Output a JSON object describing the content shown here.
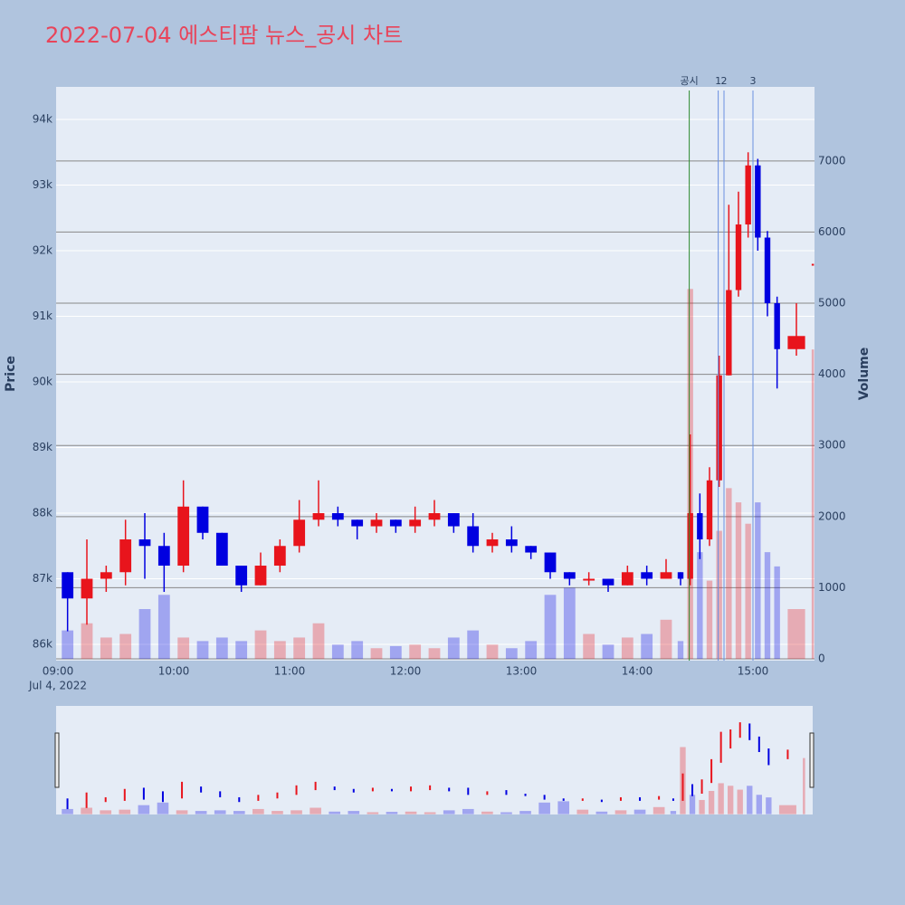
{
  "chart_data": {
    "type": "candlestick",
    "title": "2022-07-04 에스티팜 뉴스_공시 차트",
    "ylabel": "Price",
    "y2label": "Volume",
    "x_sublabel": "Jul 4, 2022",
    "x": [
      "09:00",
      "09:10",
      "09:20",
      "09:30",
      "09:40",
      "09:50",
      "10:00",
      "10:10",
      "10:20",
      "10:30",
      "10:40",
      "10:50",
      "11:00",
      "11:10",
      "11:20",
      "11:30",
      "11:40",
      "11:50",
      "12:00",
      "12:10",
      "12:20",
      "12:30",
      "12:40",
      "12:50",
      "13:00",
      "13:10",
      "13:20",
      "13:30",
      "13:40",
      "13:50",
      "14:00",
      "14:10",
      "14:20",
      "14:25",
      "14:30",
      "14:35",
      "14:40",
      "14:45",
      "14:50",
      "14:55",
      "15:00",
      "15:05",
      "15:10",
      "15:15",
      "15:30"
    ],
    "open": [
      87100,
      86700,
      87000,
      87100,
      87600,
      87500,
      87200,
      88100,
      87700,
      87200,
      86900,
      87200,
      87500,
      87900,
      88000,
      87900,
      87800,
      87900,
      87800,
      87900,
      88000,
      87800,
      87500,
      87600,
      87500,
      87400,
      87100,
      87000,
      87000,
      86900,
      87100,
      87000,
      87100,
      87000,
      88000,
      87600,
      88500,
      90100,
      91400,
      92400,
      93300,
      92200,
      91200,
      90500,
      91800
    ],
    "high": [
      87100,
      87600,
      87200,
      87900,
      88000,
      87700,
      88500,
      88100,
      87700,
      87200,
      87400,
      87600,
      88200,
      88500,
      88100,
      87900,
      88000,
      87900,
      88100,
      88200,
      88000,
      88000,
      87700,
      87800,
      87500,
      87400,
      87100,
      87100,
      87000,
      87200,
      87200,
      87300,
      87100,
      89200,
      88300,
      88700,
      90400,
      92700,
      92900,
      93500,
      93400,
      92300,
      91300,
      91200,
      91800
    ],
    "low": [
      86200,
      86300,
      86800,
      86900,
      87000,
      86800,
      87100,
      87600,
      87200,
      86800,
      86900,
      87100,
      87400,
      87800,
      87800,
      87600,
      87700,
      87700,
      87700,
      87800,
      87700,
      87400,
      87400,
      87400,
      87300,
      87000,
      86900,
      86900,
      86800,
      86900,
      86900,
      87000,
      86900,
      86900,
      87300,
      87500,
      88400,
      90100,
      91300,
      92200,
      92000,
      91000,
      89900,
      90400,
      91800
    ],
    "close": [
      86700,
      87000,
      87100,
      87600,
      87500,
      87200,
      88100,
      87700,
      87200,
      86900,
      87200,
      87500,
      87900,
      88000,
      87900,
      87800,
      87900,
      87800,
      87900,
      88000,
      87800,
      87500,
      87600,
      87500,
      87400,
      87100,
      87000,
      87000,
      86900,
      87100,
      87000,
      87100,
      87000,
      88000,
      87600,
      88500,
      90100,
      91400,
      92400,
      93300,
      92200,
      91200,
      90500,
      90700,
      91800
    ],
    "volume": [
      400,
      500,
      300,
      350,
      700,
      900,
      300,
      250,
      300,
      250,
      400,
      250,
      300,
      500,
      200,
      250,
      150,
      180,
      200,
      150,
      300,
      400,
      200,
      150,
      250,
      900,
      1000,
      350,
      200,
      300,
      350,
      550,
      250,
      5200,
      1500,
      1100,
      1800,
      2400,
      2200,
      1900,
      2200,
      1500,
      1300,
      700,
      4350
    ],
    "up_color": "#e8141c",
    "down_color": "#0000e0",
    "ylim": [
      85752,
      94497
    ],
    "yticks": [
      {
        "value": 86000,
        "label": "86k"
      },
      {
        "value": 87000,
        "label": "87k"
      },
      {
        "value": 88000,
        "label": "88k"
      },
      {
        "value": 89000,
        "label": "89k"
      },
      {
        "value": 90000,
        "label": "90k"
      },
      {
        "value": 91000,
        "label": "91k"
      },
      {
        "value": 92000,
        "label": "92k"
      },
      {
        "value": 93000,
        "label": "93k"
      },
      {
        "value": 94000,
        "label": "94k"
      }
    ],
    "y2lim": [
      -25,
      8041
    ],
    "y2ticks": [
      0,
      1000,
      2000,
      3000,
      4000,
      5000,
      6000,
      7000
    ],
    "xticks": [
      "09:00",
      "10:00",
      "11:00",
      "12:00",
      "13:00",
      "14:00",
      "15:00"
    ],
    "annotations": [
      {
        "x": "14:27",
        "label": "공시",
        "color": "#2e8b2e"
      },
      {
        "x": "14:42",
        "label": "1",
        "color": "#6a8fe0"
      },
      {
        "x": "14:45",
        "label": "2",
        "color": "#6a8fe0"
      },
      {
        "x": "15:00",
        "label": "3",
        "color": "#6a8fe0"
      }
    ],
    "grid": true
  }
}
